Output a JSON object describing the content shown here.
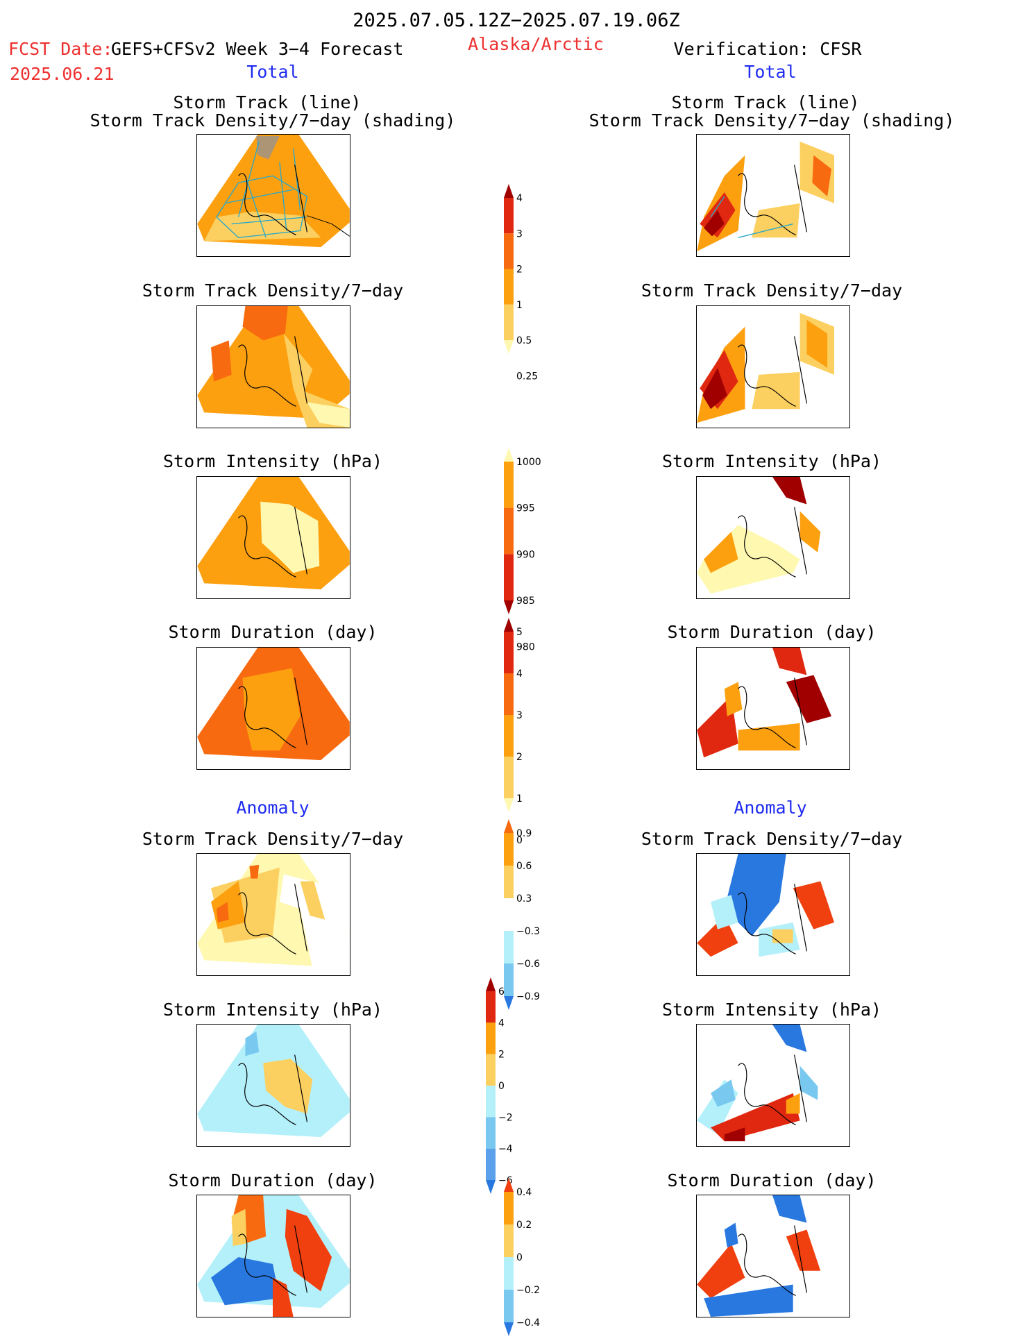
{
  "header": {
    "period": "2025.07.05.12Z−2025.07.19.06Z",
    "fcst_label": "FCST Date:",
    "model": "GEFS+CFSv2 Week 3−4 Forecast",
    "fcst_date": "2025.06.21",
    "region": "Alaska/Arctic",
    "verification": "Verification: CFSR"
  },
  "sections": {
    "total": "Total",
    "anomaly": "Anomaly"
  },
  "panel_titles": {
    "track_line": "Storm Track (line)",
    "track_shading": "Storm Track Density/7−day (shading)",
    "density": "Storm Track Density/7−day",
    "intensity": "Storm Intensity (hPa)",
    "duration": "Storm Duration (day)"
  },
  "colors": {
    "pale_yellow": "#fff8b0",
    "light_orange": "#fcd060",
    "orange": "#fca010",
    "dark_orange": "#f86a10",
    "red": "#e02810",
    "dark_red": "#a00000",
    "light_blue": "#b4f0fa",
    "mid_blue": "#78c8f0",
    "blue": "#2878e0",
    "track_line": "#2aa8c8"
  },
  "chart_data": [
    {
      "type": "heatmap",
      "name": "colorbar-track-density-total",
      "levels": [
        "4",
        "3",
        "2",
        "1",
        "0.5",
        "0.25"
      ],
      "colors": [
        "#a00000",
        "#e02810",
        "#f86a10",
        "#fca010",
        "#fcd060",
        "#fff8b0"
      ]
    },
    {
      "type": "heatmap",
      "name": "colorbar-intensity-total",
      "levels": [
        "1000",
        "995",
        "990",
        "985",
        "980"
      ],
      "colors": [
        "#fff8b0",
        "#fca010",
        "#f86a10",
        "#e02810",
        "#a00000"
      ]
    },
    {
      "type": "heatmap",
      "name": "colorbar-duration-total",
      "levels": [
        "5",
        "4",
        "3",
        "2",
        "1",
        "0"
      ],
      "colors": [
        "#a00000",
        "#e02810",
        "#f86a10",
        "#fca010",
        "#fcd060",
        "#fff8b0"
      ]
    },
    {
      "type": "heatmap",
      "name": "colorbar-density-anomaly",
      "levels": [
        "0.9",
        "0.6",
        "0.3",
        "−0.3",
        "−0.6",
        "−0.9"
      ],
      "colors": [
        "#f86a10",
        "#fca010",
        "#fcd060",
        "#ffffff",
        "#b4f0fa",
        "#78c8f0",
        "#2878e0"
      ]
    },
    {
      "type": "heatmap",
      "name": "colorbar-intensity-anomaly",
      "levels": [
        "6",
        "4",
        "2",
        "0",
        "−2",
        "−4",
        "−6"
      ],
      "colors": [
        "#a00000",
        "#e02810",
        "#fca010",
        "#fcd060",
        "#b4f0fa",
        "#78c8f0",
        "#5aa0ea",
        "#2878e0"
      ]
    },
    {
      "type": "heatmap",
      "name": "colorbar-duration-anomaly",
      "levels": [
        "0.4",
        "0.2",
        "0",
        "−0.2",
        "−0.4"
      ],
      "colors": [
        "#f04010",
        "#fca010",
        "#fcd060",
        "#b4f0fa",
        "#78c8f0",
        "#2878e0"
      ]
    }
  ]
}
